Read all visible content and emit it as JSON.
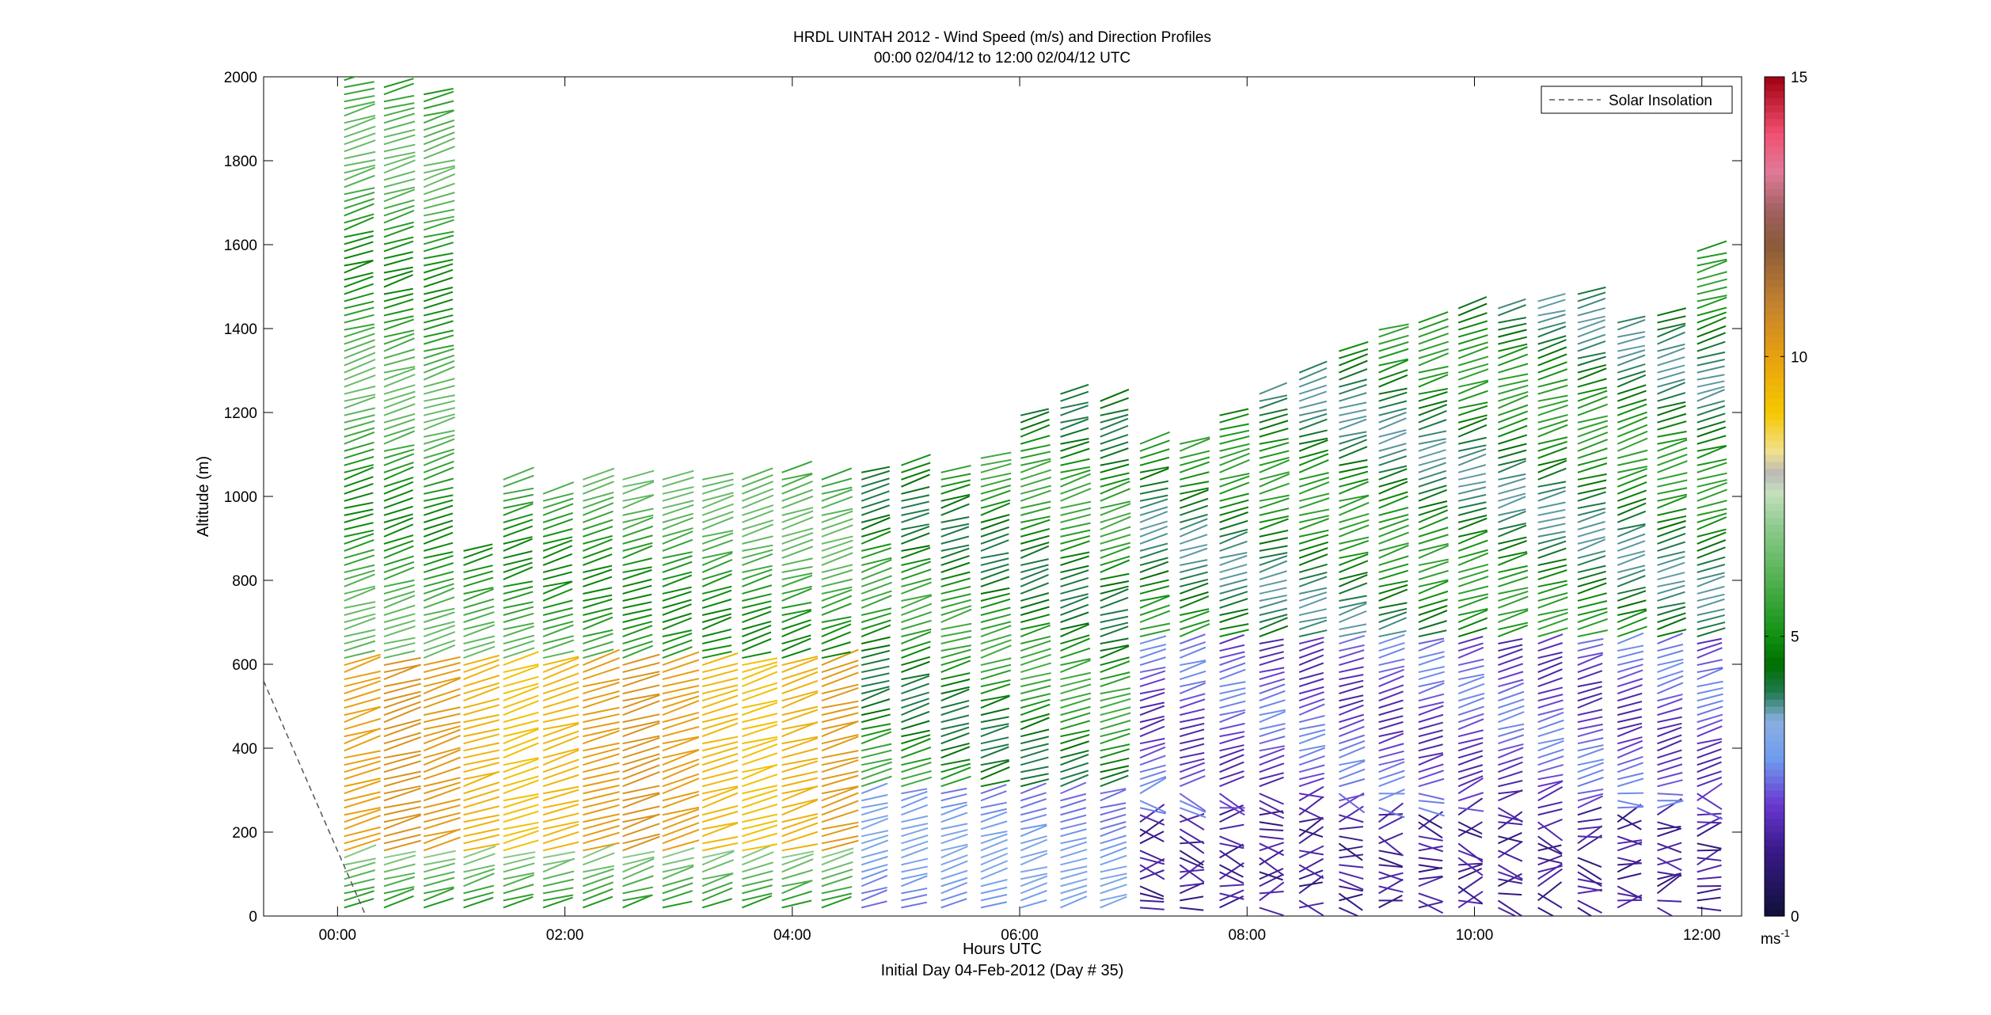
{
  "chart_data": {
    "type": "wind-barb-profile",
    "title_line1": "HRDL UINTAH 2012 - Wind Speed (m/s) and Direction Profiles",
    "title_line2": "00:00 02/04/12 to 12:00 02/04/12  UTC",
    "xlabel": "Hours UTC",
    "xlabel2": "Initial Day 04-Feb-2012 (Day # 35)",
    "ylabel": "Altitude (m)",
    "x_range_hours": [
      -0.65,
      12.35
    ],
    "ylim": [
      0,
      2000
    ],
    "x_ticks": [
      {
        "hour": 0,
        "label": "00:00"
      },
      {
        "hour": 2,
        "label": "02:00"
      },
      {
        "hour": 4,
        "label": "04:00"
      },
      {
        "hour": 6,
        "label": "06:00"
      },
      {
        "hour": 8,
        "label": "08:00"
      },
      {
        "hour": 10,
        "label": "10:00"
      },
      {
        "hour": 12,
        "label": "12:00"
      }
    ],
    "y_ticks": [
      0,
      200,
      400,
      600,
      800,
      1000,
      1200,
      1400,
      1600,
      1800,
      2000
    ],
    "legend": {
      "label": "Solar Insolation",
      "placement": "top-right"
    },
    "solar_insolation_line": {
      "x_hours": [
        -0.65,
        0.25
      ],
      "y_alt": [
        560,
        0
      ]
    },
    "colorbar": {
      "range": [
        0,
        15
      ],
      "ticks": [
        0,
        5,
        10,
        15
      ],
      "unit_base": "ms",
      "unit_exp": "-1",
      "stops": [
        {
          "v": 0,
          "c": "#101038"
        },
        {
          "v": 1.2,
          "c": "#3a1a8a"
        },
        {
          "v": 2.0,
          "c": "#6a38d0"
        },
        {
          "v": 2.8,
          "c": "#6f9bef"
        },
        {
          "v": 3.5,
          "c": "#8ab0e0"
        },
        {
          "v": 4.0,
          "c": "#207a50"
        },
        {
          "v": 4.5,
          "c": "#006e00"
        },
        {
          "v": 5.0,
          "c": "#109010"
        },
        {
          "v": 6.0,
          "c": "#50b050"
        },
        {
          "v": 7.0,
          "c": "#90cc90"
        },
        {
          "v": 7.6,
          "c": "#c8e0c0"
        },
        {
          "v": 7.9,
          "c": "#b8b8b8"
        },
        {
          "v": 8.3,
          "c": "#f0e090"
        },
        {
          "v": 9.0,
          "c": "#f5c800"
        },
        {
          "v": 10.0,
          "c": "#e8a010"
        },
        {
          "v": 11.0,
          "c": "#c08030"
        },
        {
          "v": 12.0,
          "c": "#8a5a3a"
        },
        {
          "v": 12.6,
          "c": "#a06060"
        },
        {
          "v": 13.3,
          "c": "#e07a98"
        },
        {
          "v": 14.0,
          "c": "#f05070"
        },
        {
          "v": 15.0,
          "c": "#a00010"
        }
      ]
    },
    "profile_times_hours": [
      0.1,
      0.45,
      0.8,
      1.15,
      1.5,
      1.85,
      2.2,
      2.55,
      2.9,
      3.25,
      3.6,
      3.95,
      4.3,
      4.65,
      5.0,
      5.35,
      5.7,
      6.05,
      6.4,
      6.75,
      7.1,
      7.45,
      7.8,
      8.15,
      8.5,
      8.85,
      9.2,
      9.55,
      9.9,
      10.25,
      10.6,
      10.95,
      11.3,
      11.65,
      12.0
    ],
    "profile_tops_m": [
      2000,
      1980,
      1960,
      880,
      1050,
      1020,
      1040,
      1050,
      1050,
      1040,
      1050,
      1060,
      1040,
      1060,
      1080,
      1060,
      1100,
      1200,
      1250,
      1230,
      1130,
      1140,
      1200,
      1250,
      1300,
      1350,
      1400,
      1430,
      1450,
      1460,
      1480,
      1490,
      1420,
      1440,
      1600
    ],
    "wind_speed_by_altitude_ms": [
      {
        "period": "00:00-04:30",
        "below_m": 150,
        "speed": 7.0
      },
      {
        "period": "00:00-04:30",
        "below_m": 600,
        "speed": 9.8
      },
      {
        "period": "00:00-04:30",
        "above_m": 600,
        "speed": 5.5
      },
      {
        "period": "04:30-07:00",
        "below_m": 300,
        "speed": 2.8
      },
      {
        "period": "04:30-07:00",
        "above_m": 300,
        "speed": 4.8
      },
      {
        "period": "07:00-12:00",
        "below_m": 250,
        "speed": 1.0
      },
      {
        "period": "07:00-12:00",
        "below_m": 600,
        "speed": 2.2
      },
      {
        "period": "07:00-12:00",
        "above_m": 600,
        "speed": 4.5
      }
    ]
  }
}
